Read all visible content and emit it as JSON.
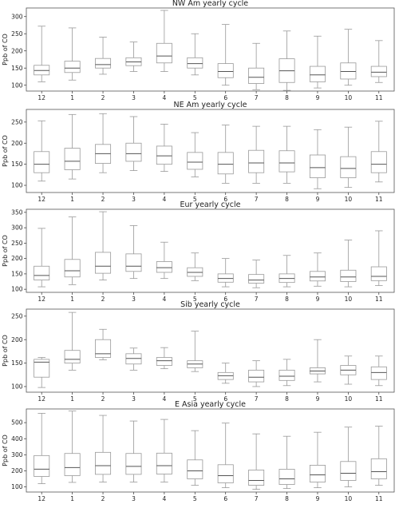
{
  "chart_data": [
    {
      "type": "box",
      "title": "NW Am yearly cycle",
      "ylabel": "Ppb of CO",
      "ylim": [
        83,
        325
      ],
      "yticks": [
        100,
        150,
        200,
        250,
        300
      ],
      "categories": [
        "12",
        "1",
        "2",
        "3",
        "4",
        "5",
        "6",
        "7",
        "8",
        "9",
        "10",
        "11"
      ],
      "boxes": [
        {
          "whislo": 110,
          "q1": 130,
          "med": 143,
          "q3": 158,
          "whishi": 272
        },
        {
          "whislo": 115,
          "q1": 137,
          "med": 150,
          "q3": 170,
          "whishi": 267
        },
        {
          "whislo": 132,
          "q1": 150,
          "med": 160,
          "q3": 178,
          "whishi": 240
        },
        {
          "whislo": 140,
          "q1": 157,
          "med": 168,
          "q3": 180,
          "whishi": 226
        },
        {
          "whislo": 140,
          "q1": 165,
          "med": 185,
          "q3": 222,
          "whishi": 318
        },
        {
          "whislo": 130,
          "q1": 150,
          "med": 163,
          "q3": 180,
          "whishi": 250
        },
        {
          "whislo": 100,
          "q1": 122,
          "med": 140,
          "q3": 163,
          "whishi": 277
        },
        {
          "whislo": 87,
          "q1": 105,
          "med": 123,
          "q3": 150,
          "whishi": 222
        },
        {
          "whislo": 85,
          "q1": 108,
          "med": 142,
          "q3": 177,
          "whishi": 258
        },
        {
          "whislo": 92,
          "q1": 110,
          "med": 130,
          "q3": 155,
          "whishi": 243
        },
        {
          "whislo": 100,
          "q1": 118,
          "med": 140,
          "q3": 165,
          "whishi": 263
        },
        {
          "whislo": 108,
          "q1": 125,
          "med": 138,
          "q3": 155,
          "whishi": 230
        }
      ]
    },
    {
      "type": "box",
      "title": "NE Am yearly cycle",
      "ylabel": "Ppb of CO",
      "ylim": [
        83,
        280
      ],
      "yticks": [
        100,
        150,
        200,
        250
      ],
      "categories": [
        "12",
        "1",
        "2",
        "3",
        "4",
        "5",
        "6",
        "7",
        "8",
        "9",
        "10",
        "11"
      ],
      "boxes": [
        {
          "whislo": 110,
          "q1": 130,
          "med": 150,
          "q3": 180,
          "whishi": 253
        },
        {
          "whislo": 115,
          "q1": 137,
          "med": 157,
          "q3": 188,
          "whishi": 268
        },
        {
          "whislo": 130,
          "q1": 152,
          "med": 175,
          "q3": 197,
          "whishi": 270
        },
        {
          "whislo": 135,
          "q1": 157,
          "med": 175,
          "q3": 200,
          "whishi": 263
        },
        {
          "whislo": 133,
          "q1": 150,
          "med": 170,
          "q3": 193,
          "whishi": 245
        },
        {
          "whislo": 120,
          "q1": 138,
          "med": 155,
          "q3": 178,
          "whishi": 225
        },
        {
          "whislo": 105,
          "q1": 127,
          "med": 150,
          "q3": 178,
          "whishi": 243
        },
        {
          "whislo": 105,
          "q1": 130,
          "med": 153,
          "q3": 183,
          "whishi": 240
        },
        {
          "whislo": 105,
          "q1": 132,
          "med": 153,
          "q3": 182,
          "whishi": 240
        },
        {
          "whislo": 92,
          "q1": 118,
          "med": 142,
          "q3": 172,
          "whishi": 232
        },
        {
          "whislo": 95,
          "q1": 118,
          "med": 140,
          "q3": 168,
          "whishi": 238
        },
        {
          "whislo": 108,
          "q1": 130,
          "med": 150,
          "q3": 180,
          "whishi": 252
        }
      ]
    },
    {
      "type": "box",
      "title": "Eur yearly cycle",
      "ylabel": "Ppb of CO",
      "ylim": [
        90,
        360
      ],
      "yticks": [
        100,
        150,
        200,
        250,
        300,
        350
      ],
      "categories": [
        "12",
        "1",
        "2",
        "3",
        "4",
        "5",
        "6",
        "7",
        "8",
        "9",
        "10",
        "11"
      ],
      "boxes": [
        {
          "whislo": 108,
          "q1": 130,
          "med": 145,
          "q3": 175,
          "whishi": 298
        },
        {
          "whislo": 115,
          "q1": 140,
          "med": 160,
          "q3": 197,
          "whishi": 335
        },
        {
          "whislo": 130,
          "q1": 152,
          "med": 175,
          "q3": 220,
          "whishi": 352
        },
        {
          "whislo": 135,
          "q1": 158,
          "med": 175,
          "q3": 215,
          "whishi": 307
        },
        {
          "whislo": 135,
          "q1": 155,
          "med": 170,
          "q3": 190,
          "whishi": 253
        },
        {
          "whislo": 128,
          "q1": 142,
          "med": 155,
          "q3": 170,
          "whishi": 218
        },
        {
          "whislo": 108,
          "q1": 123,
          "med": 135,
          "q3": 150,
          "whishi": 200
        },
        {
          "whislo": 105,
          "q1": 120,
          "med": 130,
          "q3": 148,
          "whishi": 195
        },
        {
          "whislo": 108,
          "q1": 122,
          "med": 135,
          "q3": 150,
          "whishi": 210
        },
        {
          "whislo": 110,
          "q1": 127,
          "med": 140,
          "q3": 158,
          "whishi": 218
        },
        {
          "whislo": 108,
          "q1": 125,
          "med": 140,
          "q3": 162,
          "whishi": 260
        },
        {
          "whislo": 112,
          "q1": 128,
          "med": 142,
          "q3": 173,
          "whishi": 290
        }
      ]
    },
    {
      "type": "box",
      "title": "Sib yearly cycle",
      "ylabel": "Ppb of CO",
      "ylim": [
        88,
        265
      ],
      "yticks": [
        100,
        150,
        200,
        250
      ],
      "categories": [
        "12",
        "1",
        "2",
        "3",
        "4",
        "5",
        "6",
        "7",
        "8",
        "9",
        "10",
        "11"
      ],
      "boxes": [
        {
          "whislo": 98,
          "q1": 120,
          "med": 152,
          "q3": 158,
          "whishi": 162
        },
        {
          "whislo": 135,
          "q1": 150,
          "med": 158,
          "q3": 177,
          "whishi": 258
        },
        {
          "whislo": 157,
          "q1": 162,
          "med": 170,
          "q3": 200,
          "whishi": 222
        },
        {
          "whislo": 135,
          "q1": 148,
          "med": 160,
          "q3": 170,
          "whishi": 182
        },
        {
          "whislo": 138,
          "q1": 145,
          "med": 155,
          "q3": 162,
          "whishi": 183
        },
        {
          "whislo": 132,
          "q1": 140,
          "med": 148,
          "q3": 155,
          "whishi": 218
        },
        {
          "whislo": 107,
          "q1": 115,
          "med": 123,
          "q3": 130,
          "whishi": 150
        },
        {
          "whislo": 100,
          "q1": 110,
          "med": 120,
          "q3": 135,
          "whishi": 155
        },
        {
          "whislo": 102,
          "q1": 113,
          "med": 122,
          "q3": 135,
          "whishi": 158
        },
        {
          "whislo": 110,
          "q1": 127,
          "med": 133,
          "q3": 140,
          "whishi": 200
        },
        {
          "whislo": 105,
          "q1": 125,
          "med": 135,
          "q3": 145,
          "whishi": 165
        },
        {
          "whislo": 102,
          "q1": 115,
          "med": 130,
          "q3": 142,
          "whishi": 165
        }
      ]
    },
    {
      "type": "box",
      "title": "E Asia yearly cycle",
      "ylabel": "Ppb of CO",
      "ylim": [
        68,
        585
      ],
      "yticks": [
        100,
        200,
        300,
        400,
        500
      ],
      "categories": [
        "12",
        "1",
        "2",
        "3",
        "4",
        "5",
        "6",
        "7",
        "8",
        "9",
        "10",
        "11"
      ],
      "boxes": [
        {
          "whislo": 120,
          "q1": 165,
          "med": 210,
          "q3": 295,
          "whishi": 558
        },
        {
          "whislo": 128,
          "q1": 170,
          "med": 220,
          "q3": 308,
          "whishi": 572
        },
        {
          "whislo": 130,
          "q1": 178,
          "med": 232,
          "q3": 315,
          "whishi": 545
        },
        {
          "whislo": 130,
          "q1": 178,
          "med": 228,
          "q3": 308,
          "whishi": 510
        },
        {
          "whislo": 130,
          "q1": 180,
          "med": 232,
          "q3": 310,
          "whishi": 520
        },
        {
          "whislo": 110,
          "q1": 150,
          "med": 200,
          "q3": 268,
          "whishi": 450
        },
        {
          "whislo": 95,
          "q1": 125,
          "med": 170,
          "q3": 238,
          "whishi": 497
        },
        {
          "whislo": 85,
          "q1": 110,
          "med": 140,
          "q3": 205,
          "whishi": 430
        },
        {
          "whislo": 90,
          "q1": 115,
          "med": 150,
          "q3": 210,
          "whishi": 415
        },
        {
          "whislo": 95,
          "q1": 130,
          "med": 175,
          "q3": 235,
          "whishi": 440
        },
        {
          "whislo": 100,
          "q1": 140,
          "med": 185,
          "q3": 258,
          "whishi": 472
        },
        {
          "whislo": 110,
          "q1": 150,
          "med": 195,
          "q3": 275,
          "whishi": 478
        }
      ]
    }
  ]
}
